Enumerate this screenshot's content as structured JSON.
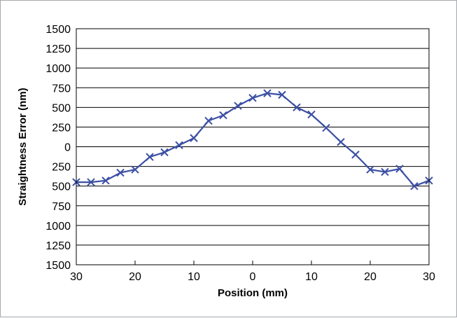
{
  "chart_data": {
    "type": "line",
    "title": "",
    "xlabel": "Position (mm)",
    "ylabel": "Straightness Error (nm)",
    "xlim": [
      -30,
      30
    ],
    "ylim": [
      -1500,
      1500
    ],
    "x_ticks": [
      -30,
      -20,
      -10,
      0,
      10,
      20,
      30
    ],
    "x_tick_labels": [
      "30",
      "20",
      "10",
      "0",
      "10",
      "20",
      "30"
    ],
    "y_ticks": [
      1500,
      1250,
      1000,
      750,
      500,
      250,
      0,
      -250,
      -500,
      -750,
      -1000,
      -1250,
      -1500
    ],
    "y_tick_labels": [
      "1500",
      "1250",
      "1000",
      "750",
      "500",
      "250",
      "0",
      "250",
      "500",
      "750",
      "1000",
      "1250",
      "1500"
    ],
    "grid": "horizontal",
    "legend": "none",
    "series": [
      {
        "color": "#3b4fa3",
        "marker": "x",
        "x": [
          -30,
          -27.5,
          -25,
          -22.5,
          -20,
          -17.5,
          -15,
          -12.5,
          -10,
          -7.5,
          -5,
          -2.5,
          0,
          2.5,
          5,
          7.5,
          10,
          12.5,
          15,
          17.5,
          20,
          22.5,
          25,
          27.5,
          30
        ],
        "y": [
          -450,
          -450,
          -430,
          -330,
          -290,
          -130,
          -70,
          20,
          110,
          330,
          400,
          520,
          620,
          680,
          660,
          500,
          410,
          240,
          60,
          -100,
          -290,
          -320,
          -280,
          -500,
          -430
        ]
      }
    ]
  }
}
